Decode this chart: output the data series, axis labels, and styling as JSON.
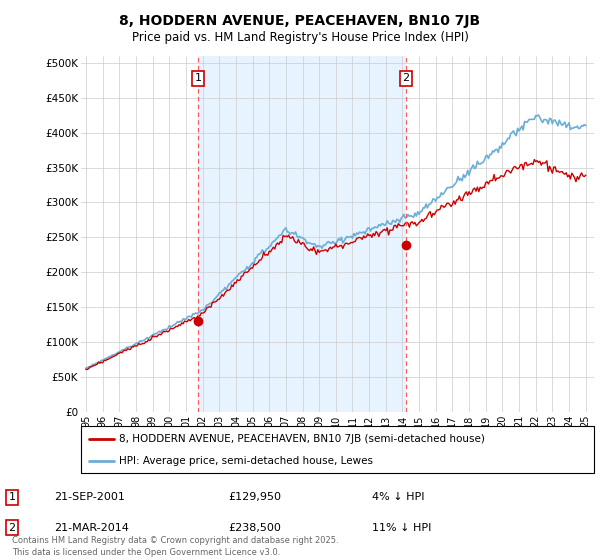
{
  "title": "8, HODDERN AVENUE, PEACEHAVEN, BN10 7JB",
  "subtitle": "Price paid vs. HM Land Registry's House Price Index (HPI)",
  "ylabel_ticks": [
    "£0",
    "£50K",
    "£100K",
    "£150K",
    "£200K",
    "£250K",
    "£300K",
    "£350K",
    "£400K",
    "£450K",
    "£500K"
  ],
  "ytick_values": [
    0,
    50000,
    100000,
    150000,
    200000,
    250000,
    300000,
    350000,
    400000,
    450000,
    500000
  ],
  "ylim": [
    0,
    510000
  ],
  "hpi_color": "#6baed6",
  "price_color": "#cc0000",
  "fill_color": "#ddeeff",
  "vline_color": "#ff5555",
  "marker1_year": 2001.72,
  "marker2_year": 2014.22,
  "marker1_price": 129950,
  "marker2_price": 238500,
  "legend_label1": "8, HODDERN AVENUE, PEACEHAVEN, BN10 7JB (semi-detached house)",
  "legend_label2": "HPI: Average price, semi-detached house, Lewes",
  "annotation1_text": "21-SEP-2001",
  "annotation1_price": "£129,950",
  "annotation1_hpi": "4% ↓ HPI",
  "annotation2_text": "21-MAR-2014",
  "annotation2_price": "£238,500",
  "annotation2_hpi": "11% ↓ HPI",
  "copyright_text": "Contains HM Land Registry data © Crown copyright and database right 2025.\nThis data is licensed under the Open Government Licence v3.0.",
  "x_start_year": 1995,
  "x_end_year": 2025,
  "background_color": "#ffffff",
  "plot_bg_color": "#ffffff",
  "grid_color": "#cccccc"
}
